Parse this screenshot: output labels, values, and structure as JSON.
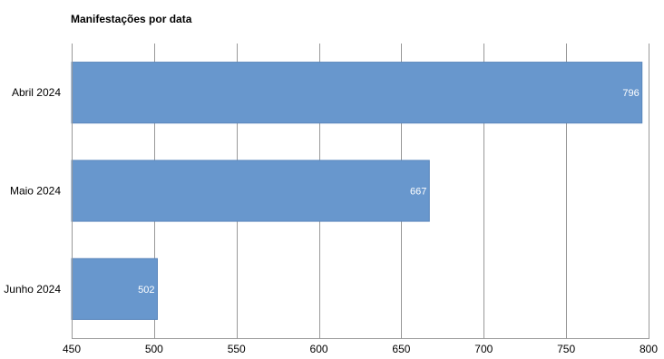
{
  "chart_data": {
    "type": "bar",
    "orientation": "horizontal",
    "title": "Manifestações por data",
    "xlabel": "",
    "ylabel": "",
    "categories": [
      "Abril 2024",
      "Maio 2024",
      "Junho 2024"
    ],
    "values": [
      796,
      667,
      502
    ],
    "value_labels": [
      "796",
      "667",
      "502"
    ],
    "xlim": [
      450,
      800
    ],
    "xticks": [
      450,
      500,
      550,
      600,
      650,
      700,
      750,
      800
    ],
    "xtick_labels": [
      "450",
      "500",
      "550",
      "600",
      "650",
      "700",
      "750",
      "800"
    ],
    "grid": "vertical",
    "legend": "none",
    "colors": {
      "bar": "#6897cd",
      "bar_stroke": "#5a86bb",
      "grid": "#999999",
      "text": "#000000",
      "value_label": "#ffffff"
    }
  }
}
